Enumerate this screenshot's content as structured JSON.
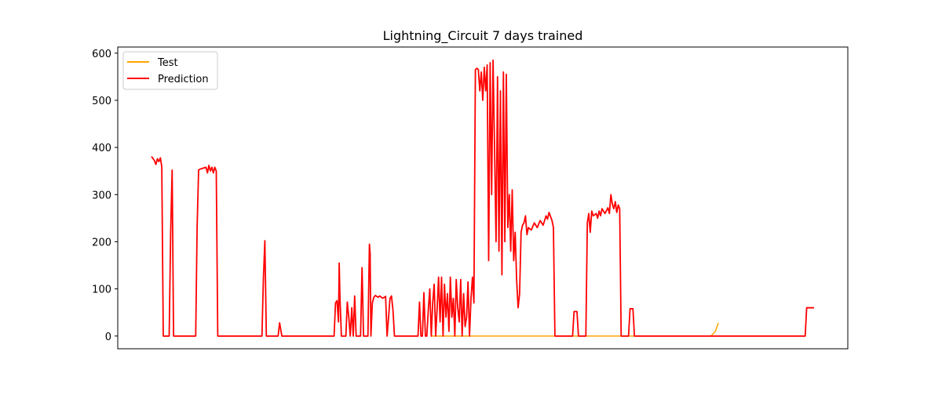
{
  "chart_data": {
    "type": "line",
    "title": "Lightning_Circuit 7 days trained",
    "xlabel": "",
    "ylabel": "",
    "xlim": [
      0,
      450
    ],
    "ylim": [
      -27,
      613
    ],
    "x_tick_labels": [],
    "y_ticks": [
      0,
      100,
      200,
      300,
      400,
      500,
      600
    ],
    "y_tick_labels": [
      "0",
      "100",
      "200",
      "300",
      "400",
      "500",
      "600"
    ],
    "grid": false,
    "legend": {
      "placement": "top-left"
    },
    "series": [
      {
        "name": "Test",
        "color": "#ffa500",
        "points": [
          [
            190,
            0
          ],
          [
            380,
            0
          ],
          [
            383,
            10
          ],
          [
            385,
            28
          ]
        ]
      },
      {
        "name": "Prediction",
        "color": "#ff0000",
        "points": [
          [
            0,
            381
          ],
          [
            2,
            372
          ],
          [
            3,
            364
          ],
          [
            4,
            376
          ],
          [
            5,
            370
          ],
          [
            6,
            378
          ],
          [
            7,
            359
          ],
          [
            8,
            0
          ],
          [
            10,
            0
          ],
          [
            12,
            0
          ],
          [
            13,
            220
          ],
          [
            14,
            352
          ],
          [
            15,
            0
          ],
          [
            18,
            0
          ],
          [
            30,
            0
          ],
          [
            31,
            230
          ],
          [
            32,
            352
          ],
          [
            33,
            354
          ],
          [
            35,
            356
          ],
          [
            37,
            358
          ],
          [
            38,
            346
          ],
          [
            39,
            362
          ],
          [
            40,
            350
          ],
          [
            41,
            358
          ],
          [
            42,
            346
          ],
          [
            43,
            358
          ],
          [
            44,
            350
          ],
          [
            45,
            0
          ],
          [
            60,
            0
          ],
          [
            75,
            0
          ],
          [
            76,
            120
          ],
          [
            77,
            202
          ],
          [
            78,
            0
          ],
          [
            86,
            0
          ],
          [
            87,
            28
          ],
          [
            88,
            10
          ],
          [
            88.5,
            0
          ],
          [
            100,
            0
          ],
          [
            120,
            0
          ],
          [
            124,
            0
          ],
          [
            125,
            70
          ],
          [
            126,
            75
          ],
          [
            127,
            30
          ],
          [
            127.5,
            155
          ],
          [
            128,
            80
          ],
          [
            129,
            0
          ],
          [
            132,
            0
          ],
          [
            133,
            72
          ],
          [
            134,
            40
          ],
          [
            135,
            0
          ],
          [
            136,
            60
          ],
          [
            137,
            0
          ],
          [
            138,
            85
          ],
          [
            139,
            0
          ],
          [
            142,
            0
          ],
          [
            143,
            145
          ],
          [
            144,
            0
          ],
          [
            147,
            0
          ],
          [
            148,
            195
          ],
          [
            148.5,
            175
          ],
          [
            149,
            0
          ],
          [
            150,
            70
          ],
          [
            151,
            82
          ],
          [
            152,
            86
          ],
          [
            154,
            82
          ],
          [
            155,
            85
          ],
          [
            157,
            80
          ],
          [
            159,
            84
          ],
          [
            160,
            0
          ],
          [
            161,
            40
          ],
          [
            162,
            80
          ],
          [
            163,
            85
          ],
          [
            164,
            55
          ],
          [
            165,
            0
          ],
          [
            175,
            0
          ],
          [
            181,
            0
          ],
          [
            182,
            72
          ],
          [
            183,
            0
          ],
          [
            184,
            0
          ],
          [
            185,
            92
          ],
          [
            186,
            0
          ],
          [
            187,
            0
          ],
          [
            188,
            55
          ],
          [
            189,
            100
          ],
          [
            190,
            0
          ],
          [
            191,
            70
          ],
          [
            192,
            110
          ],
          [
            193,
            0
          ],
          [
            194,
            60
          ],
          [
            195,
            125
          ],
          [
            196,
            30
          ],
          [
            197,
            125
          ],
          [
            198,
            0
          ],
          [
            199,
            110
          ],
          [
            200,
            40
          ],
          [
            201,
            90
          ],
          [
            202,
            10
          ],
          [
            203,
            125
          ],
          [
            204,
            40
          ],
          [
            205,
            80
          ],
          [
            206,
            0
          ],
          [
            207,
            120
          ],
          [
            208,
            60
          ],
          [
            209,
            30
          ],
          [
            210,
            120
          ],
          [
            211,
            0
          ],
          [
            212,
            90
          ],
          [
            213,
            20
          ],
          [
            214,
            40
          ],
          [
            215,
            115
          ],
          [
            216,
            0
          ],
          [
            217,
            80
          ],
          [
            218,
            125
          ],
          [
            219,
            70
          ],
          [
            220,
            565
          ],
          [
            221,
            568
          ],
          [
            222,
            565
          ],
          [
            223,
            520
          ],
          [
            224,
            560
          ],
          [
            225,
            500
          ],
          [
            226,
            570
          ],
          [
            227,
            520
          ],
          [
            228,
            575
          ],
          [
            229,
            160
          ],
          [
            230,
            580
          ],
          [
            231,
            300
          ],
          [
            232,
            585
          ],
          [
            233,
            400
          ],
          [
            234,
            200
          ],
          [
            235,
            550
          ],
          [
            236,
            180
          ],
          [
            237,
            520
          ],
          [
            238,
            130
          ],
          [
            239,
            560
          ],
          [
            240,
            200
          ],
          [
            241,
            555
          ],
          [
            242,
            230
          ],
          [
            243,
            300
          ],
          [
            244,
            180
          ],
          [
            245,
            310
          ],
          [
            246,
            160
          ],
          [
            247,
            220
          ],
          [
            248,
            120
          ],
          [
            249,
            60
          ],
          [
            250,
            90
          ],
          [
            251,
            220
          ],
          [
            252,
            235
          ],
          [
            253,
            240
          ],
          [
            254,
            255
          ],
          [
            255,
            215
          ],
          [
            256,
            230
          ],
          [
            258,
            225
          ],
          [
            260,
            240
          ],
          [
            262,
            230
          ],
          [
            264,
            245
          ],
          [
            266,
            235
          ],
          [
            268,
            255
          ],
          [
            269,
            248
          ],
          [
            270,
            262
          ],
          [
            272,
            245
          ],
          [
            273,
            230
          ],
          [
            274,
            0
          ],
          [
            286,
            0
          ],
          [
            287,
            52
          ],
          [
            289,
            52
          ],
          [
            290,
            0
          ],
          [
            295,
            0
          ],
          [
            296,
            240
          ],
          [
            297,
            260
          ],
          [
            298,
            220
          ],
          [
            299,
            265
          ],
          [
            300,
            255
          ],
          [
            302,
            260
          ],
          [
            303,
            250
          ],
          [
            304,
            265
          ],
          [
            305,
            255
          ],
          [
            306,
            270
          ],
          [
            308,
            260
          ],
          [
            310,
            272
          ],
          [
            311,
            260
          ],
          [
            312,
            300
          ],
          [
            313,
            280
          ],
          [
            314,
            270
          ],
          [
            315,
            285
          ],
          [
            316,
            262
          ],
          [
            317,
            278
          ],
          [
            318,
            270
          ],
          [
            319,
            0
          ],
          [
            324,
            0
          ],
          [
            325,
            58
          ],
          [
            327,
            58
          ],
          [
            328,
            0
          ],
          [
            340,
            0
          ],
          [
            360,
            0
          ],
          [
            380,
            0
          ],
          [
            400,
            0
          ],
          [
            420,
            0
          ],
          [
            444,
            0
          ],
          [
            445,
            60
          ],
          [
            447,
            60
          ],
          [
            450,
            60
          ]
        ]
      }
    ]
  }
}
